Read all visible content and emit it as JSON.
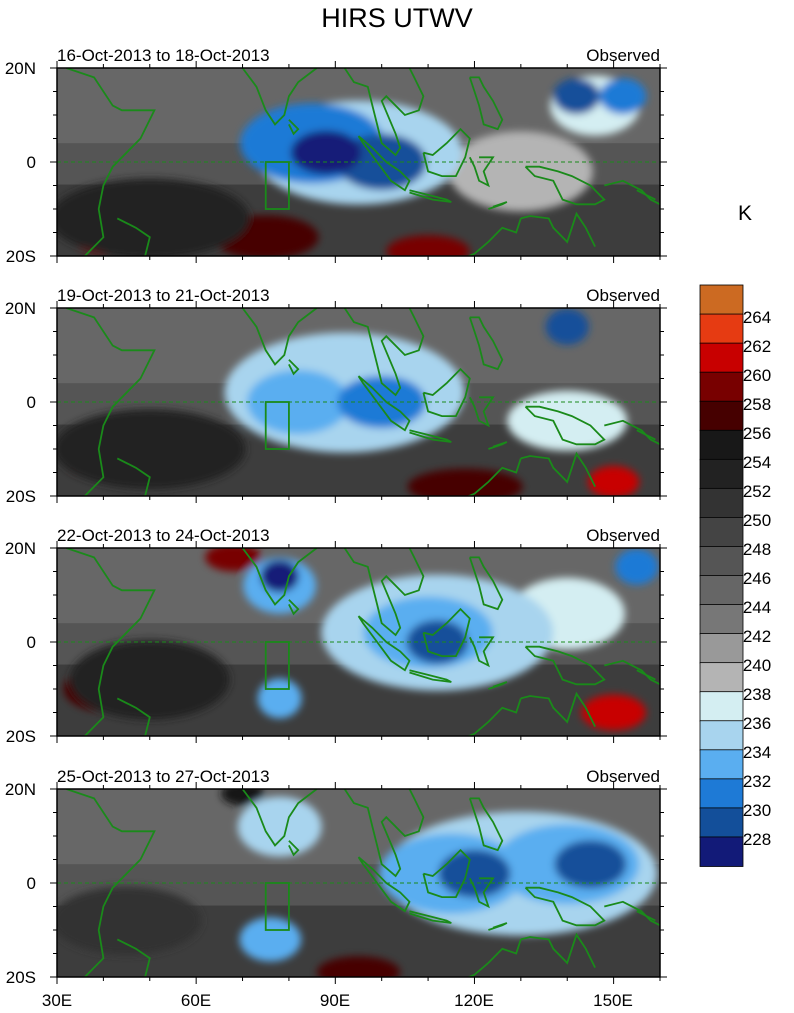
{
  "title": "HIRS UTWV",
  "chart_data": {
    "type": "heatmap",
    "title": "HIRS UTWV",
    "units": "K",
    "x_range": [
      30,
      160
    ],
    "y_range": [
      -20,
      20
    ],
    "x_ticks": [
      "30E",
      "60E",
      "90E",
      "120E",
      "150E"
    ],
    "x_tick_values": [
      30,
      60,
      90,
      120,
      150
    ],
    "y_ticks": [
      "20N",
      "0",
      "20S"
    ],
    "y_tick_values": [
      20,
      0,
      -20
    ],
    "colorbar": {
      "labels": [
        "264",
        "262",
        "260",
        "258",
        "256",
        "254",
        "252",
        "250",
        "248",
        "246",
        "244",
        "242",
        "240",
        "238",
        "236",
        "234",
        "232",
        "230",
        "228"
      ],
      "colors": [
        "#cc6a22",
        "#e63b12",
        "#c80000",
        "#780000",
        "#460000",
        "#181818",
        "#222222",
        "#333333",
        "#444444",
        "#555555",
        "#666666",
        "#777777",
        "#999999",
        "#b4b4b4",
        "#d4eef2",
        "#a8d4ee",
        "#5aaef0",
        "#1e7ad6",
        "#134f9a",
        "#121a78"
      ]
    },
    "panels": [
      {
        "period": "16-Oct-2013 to 18-Oct-2013",
        "label": "Observed",
        "features": [
          {
            "lon": 88,
            "lat": 2,
            "k": 228,
            "r": 22,
            "sx": 1.6
          },
          {
            "lon": 100,
            "lat": 0,
            "k": 230,
            "r": 28,
            "sx": 1.6
          },
          {
            "lon": 85,
            "lat": 4,
            "k": 232,
            "r": 40,
            "sx": 1.8
          },
          {
            "lon": 95,
            "lat": 2,
            "k": 236,
            "r": 52,
            "sx": 2.0
          },
          {
            "lon": 142,
            "lat": 14,
            "k": 230,
            "r": 18,
            "sx": 1.3
          },
          {
            "lon": 152,
            "lat": 14,
            "k": 232,
            "r": 18,
            "sx": 1.3
          },
          {
            "lon": 146,
            "lat": 12,
            "k": 238,
            "r": 30,
            "sx": 1.5
          },
          {
            "lon": 130,
            "lat": -2,
            "k": 240,
            "r": 40,
            "sx": 1.8
          },
          {
            "lon": 50,
            "lat": -12,
            "k": 254,
            "r": 40,
            "sx": 2.5
          },
          {
            "lon": 40,
            "lat": -16,
            "k": 260,
            "r": 18,
            "sx": 1.6
          },
          {
            "lon": 75,
            "lat": -16,
            "k": 258,
            "r": 22,
            "sx": 2.4
          },
          {
            "lon": 110,
            "lat": -19,
            "k": 260,
            "r": 16,
            "sx": 2.6
          }
        ]
      },
      {
        "period": "19-Oct-2013 to 21-Oct-2013",
        "label": "Observed",
        "features": [
          {
            "lon": 100,
            "lat": 0,
            "k": 232,
            "r": 26,
            "sx": 1.7
          },
          {
            "lon": 82,
            "lat": 0,
            "k": 234,
            "r": 32,
            "sx": 1.6
          },
          {
            "lon": 92,
            "lat": 2,
            "k": 236,
            "r": 60,
            "sx": 2.0
          },
          {
            "lon": 140,
            "lat": 16,
            "k": 230,
            "r": 18,
            "sx": 1.2
          },
          {
            "lon": 140,
            "lat": -4,
            "k": 238,
            "r": 30,
            "sx": 2.0
          },
          {
            "lon": 50,
            "lat": -10,
            "k": 254,
            "r": 40,
            "sx": 2.4
          },
          {
            "lon": 38,
            "lat": -12,
            "k": 258,
            "r": 20,
            "sx": 1.6
          },
          {
            "lon": 118,
            "lat": -18,
            "k": 258,
            "r": 18,
            "sx": 3.2
          },
          {
            "lon": 150,
            "lat": -17,
            "k": 262,
            "r": 16,
            "sx": 1.6
          }
        ]
      },
      {
        "period": "22-Oct-2013 to 24-Oct-2013",
        "label": "Observed",
        "features": [
          {
            "lon": 78,
            "lat": 14,
            "k": 228,
            "r": 16,
            "sx": 1.2
          },
          {
            "lon": 78,
            "lat": 12,
            "k": 234,
            "r": 28,
            "sx": 1.3
          },
          {
            "lon": 112,
            "lat": 0,
            "k": 230,
            "r": 22,
            "sx": 1.4
          },
          {
            "lon": 110,
            "lat": 2,
            "k": 234,
            "r": 36,
            "sx": 1.8
          },
          {
            "lon": 112,
            "lat": 2,
            "k": 236,
            "r": 58,
            "sx": 2.0
          },
          {
            "lon": 78,
            "lat": -12,
            "k": 234,
            "r": 20,
            "sx": 1.1
          },
          {
            "lon": 155,
            "lat": 16,
            "k": 232,
            "r": 18,
            "sx": 1.2
          },
          {
            "lon": 140,
            "lat": 6,
            "k": 238,
            "r": 36,
            "sx": 1.6
          },
          {
            "lon": 40,
            "lat": -10,
            "k": 258,
            "r": 22,
            "sx": 1.8
          },
          {
            "lon": 50,
            "lat": -8,
            "k": 254,
            "r": 40,
            "sx": 2.0
          },
          {
            "lon": 68,
            "lat": 18,
            "k": 260,
            "r": 14,
            "sx": 2.0
          },
          {
            "lon": 150,
            "lat": -15,
            "k": 262,
            "r": 18,
            "sx": 1.8
          }
        ]
      },
      {
        "period": "25-Oct-2013 to 27-Oct-2013",
        "label": "Observed",
        "features": [
          {
            "lon": 120,
            "lat": 2,
            "k": 230,
            "r": 24,
            "sx": 1.5
          },
          {
            "lon": 145,
            "lat": 4,
            "k": 230,
            "r": 24,
            "sx": 1.5
          },
          {
            "lon": 115,
            "lat": 2,
            "k": 234,
            "r": 40,
            "sx": 1.8
          },
          {
            "lon": 140,
            "lat": 4,
            "k": 234,
            "r": 40,
            "sx": 1.8
          },
          {
            "lon": 130,
            "lat": 2,
            "k": 236,
            "r": 62,
            "sx": 2.2
          },
          {
            "lon": 78,
            "lat": 12,
            "k": 236,
            "r": 30,
            "sx": 1.4
          },
          {
            "lon": 76,
            "lat": -12,
            "k": 234,
            "r": 22,
            "sx": 1.4
          },
          {
            "lon": 45,
            "lat": -8,
            "k": 252,
            "r": 34,
            "sx": 2.2
          },
          {
            "lon": 95,
            "lat": -19,
            "k": 258,
            "r": 16,
            "sx": 2.6
          },
          {
            "lon": 70,
            "lat": 19,
            "k": 256,
            "r": 12,
            "sx": 1.8
          }
        ]
      }
    ]
  }
}
